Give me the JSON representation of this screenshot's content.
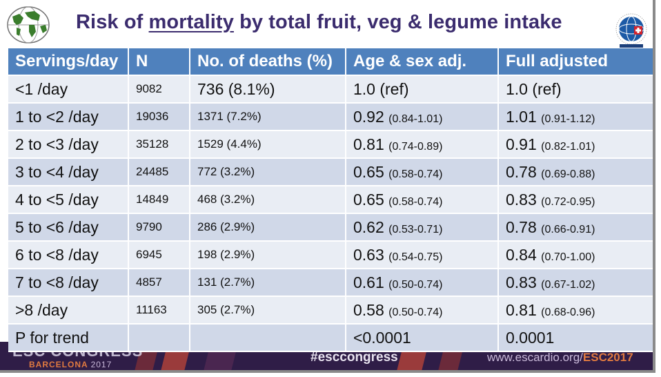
{
  "slide": {
    "title_before": "Risk of ",
    "title_underlined": "mortality",
    "title_after": " by total fruit, veg & legume intake"
  },
  "table": {
    "headers": [
      "Servings/day",
      "N",
      "No. of deaths (%)",
      "Age & sex adj.",
      "Full adjusted"
    ],
    "rows": [
      {
        "servings": "<1 /day",
        "n": "9082",
        "deaths": "736 (8.1%)",
        "age_sex_est": "1.0 (ref)",
        "age_sex_ci": "",
        "full_est": "1.0 (ref)",
        "full_ci": ""
      },
      {
        "servings": "1 to <2 /day",
        "n": "19036",
        "deaths": "1371 (7.2%)",
        "age_sex_est": "0.92",
        "age_sex_ci": "(0.84-1.01)",
        "full_est": "1.01",
        "full_ci": "(0.91-1.12)"
      },
      {
        "servings": "2 to <3 /day",
        "n": "35128",
        "deaths": "1529 (4.4%)",
        "age_sex_est": "0.81",
        "age_sex_ci": "(0.74-0.89)",
        "full_est": "0.91",
        "full_ci": "(0.82-1.01)"
      },
      {
        "servings": "3 to <4 /day",
        "n": "24485",
        "deaths": "772 (3.2%)",
        "age_sex_est": "0.65",
        "age_sex_ci": "(0.58-0.74)",
        "full_est": "0.78",
        "full_ci": "(0.69-0.88)"
      },
      {
        "servings": "4 to <5 /day",
        "n": "14849",
        "deaths": "468 (3.2%)",
        "age_sex_est": "0.65",
        "age_sex_ci": "(0.58-0.74)",
        "full_est": "0.83",
        "full_ci": "(0.72-0.95)"
      },
      {
        "servings": "5 to <6 /day",
        "n": "9790",
        "deaths": "286 (2.9%)",
        "age_sex_est": "0.62",
        "age_sex_ci": "(0.53-0.71)",
        "full_est": "0.78",
        "full_ci": "(0.66-0.91)"
      },
      {
        "servings": "6 to <8 /day",
        "n": "6945",
        "deaths": "198 (2.9%)",
        "age_sex_est": "0.63",
        "age_sex_ci": "(0.54-0.75)",
        "full_est": "0.84",
        "full_ci": "(0.70-1.00)"
      },
      {
        "servings": "7 to <8 /day",
        "n": "4857",
        "deaths": "131 (2.7%)",
        "age_sex_est": "0.61",
        "age_sex_ci": "(0.50-0.74)",
        "full_est": "0.83",
        "full_ci": "(0.67-1.02)"
      },
      {
        "servings": ">8 /day",
        "n": "11163",
        "deaths": "305 (2.7%)",
        "age_sex_est": "0.58",
        "age_sex_ci": "(0.50-0.74)",
        "full_est": "0.81",
        "full_ci": "(0.68-0.96)"
      },
      {
        "servings": "P for trend",
        "n": "",
        "deaths": "",
        "age_sex_est": "<0.0001",
        "age_sex_ci": "",
        "full_est": "0.0001",
        "full_ci": ""
      }
    ]
  },
  "footer": {
    "congress": "ESC CONGRESS",
    "city": "BARCELONA",
    "year": "2017",
    "hashtag": "#esccongress",
    "site_prefix": "www.escardio.org/",
    "site_suffix": "ESC2017"
  },
  "logos": {
    "left": "world-map-logo",
    "right": "globe-research-institute-logo"
  },
  "colors": {
    "title": "#3b2c6e",
    "header_bg": "#4f81bd",
    "row_light": "#e9edf4",
    "row_dark": "#d0d8e8",
    "footer_bg": "#2f1d47",
    "footer_accent": "#e07a40"
  }
}
